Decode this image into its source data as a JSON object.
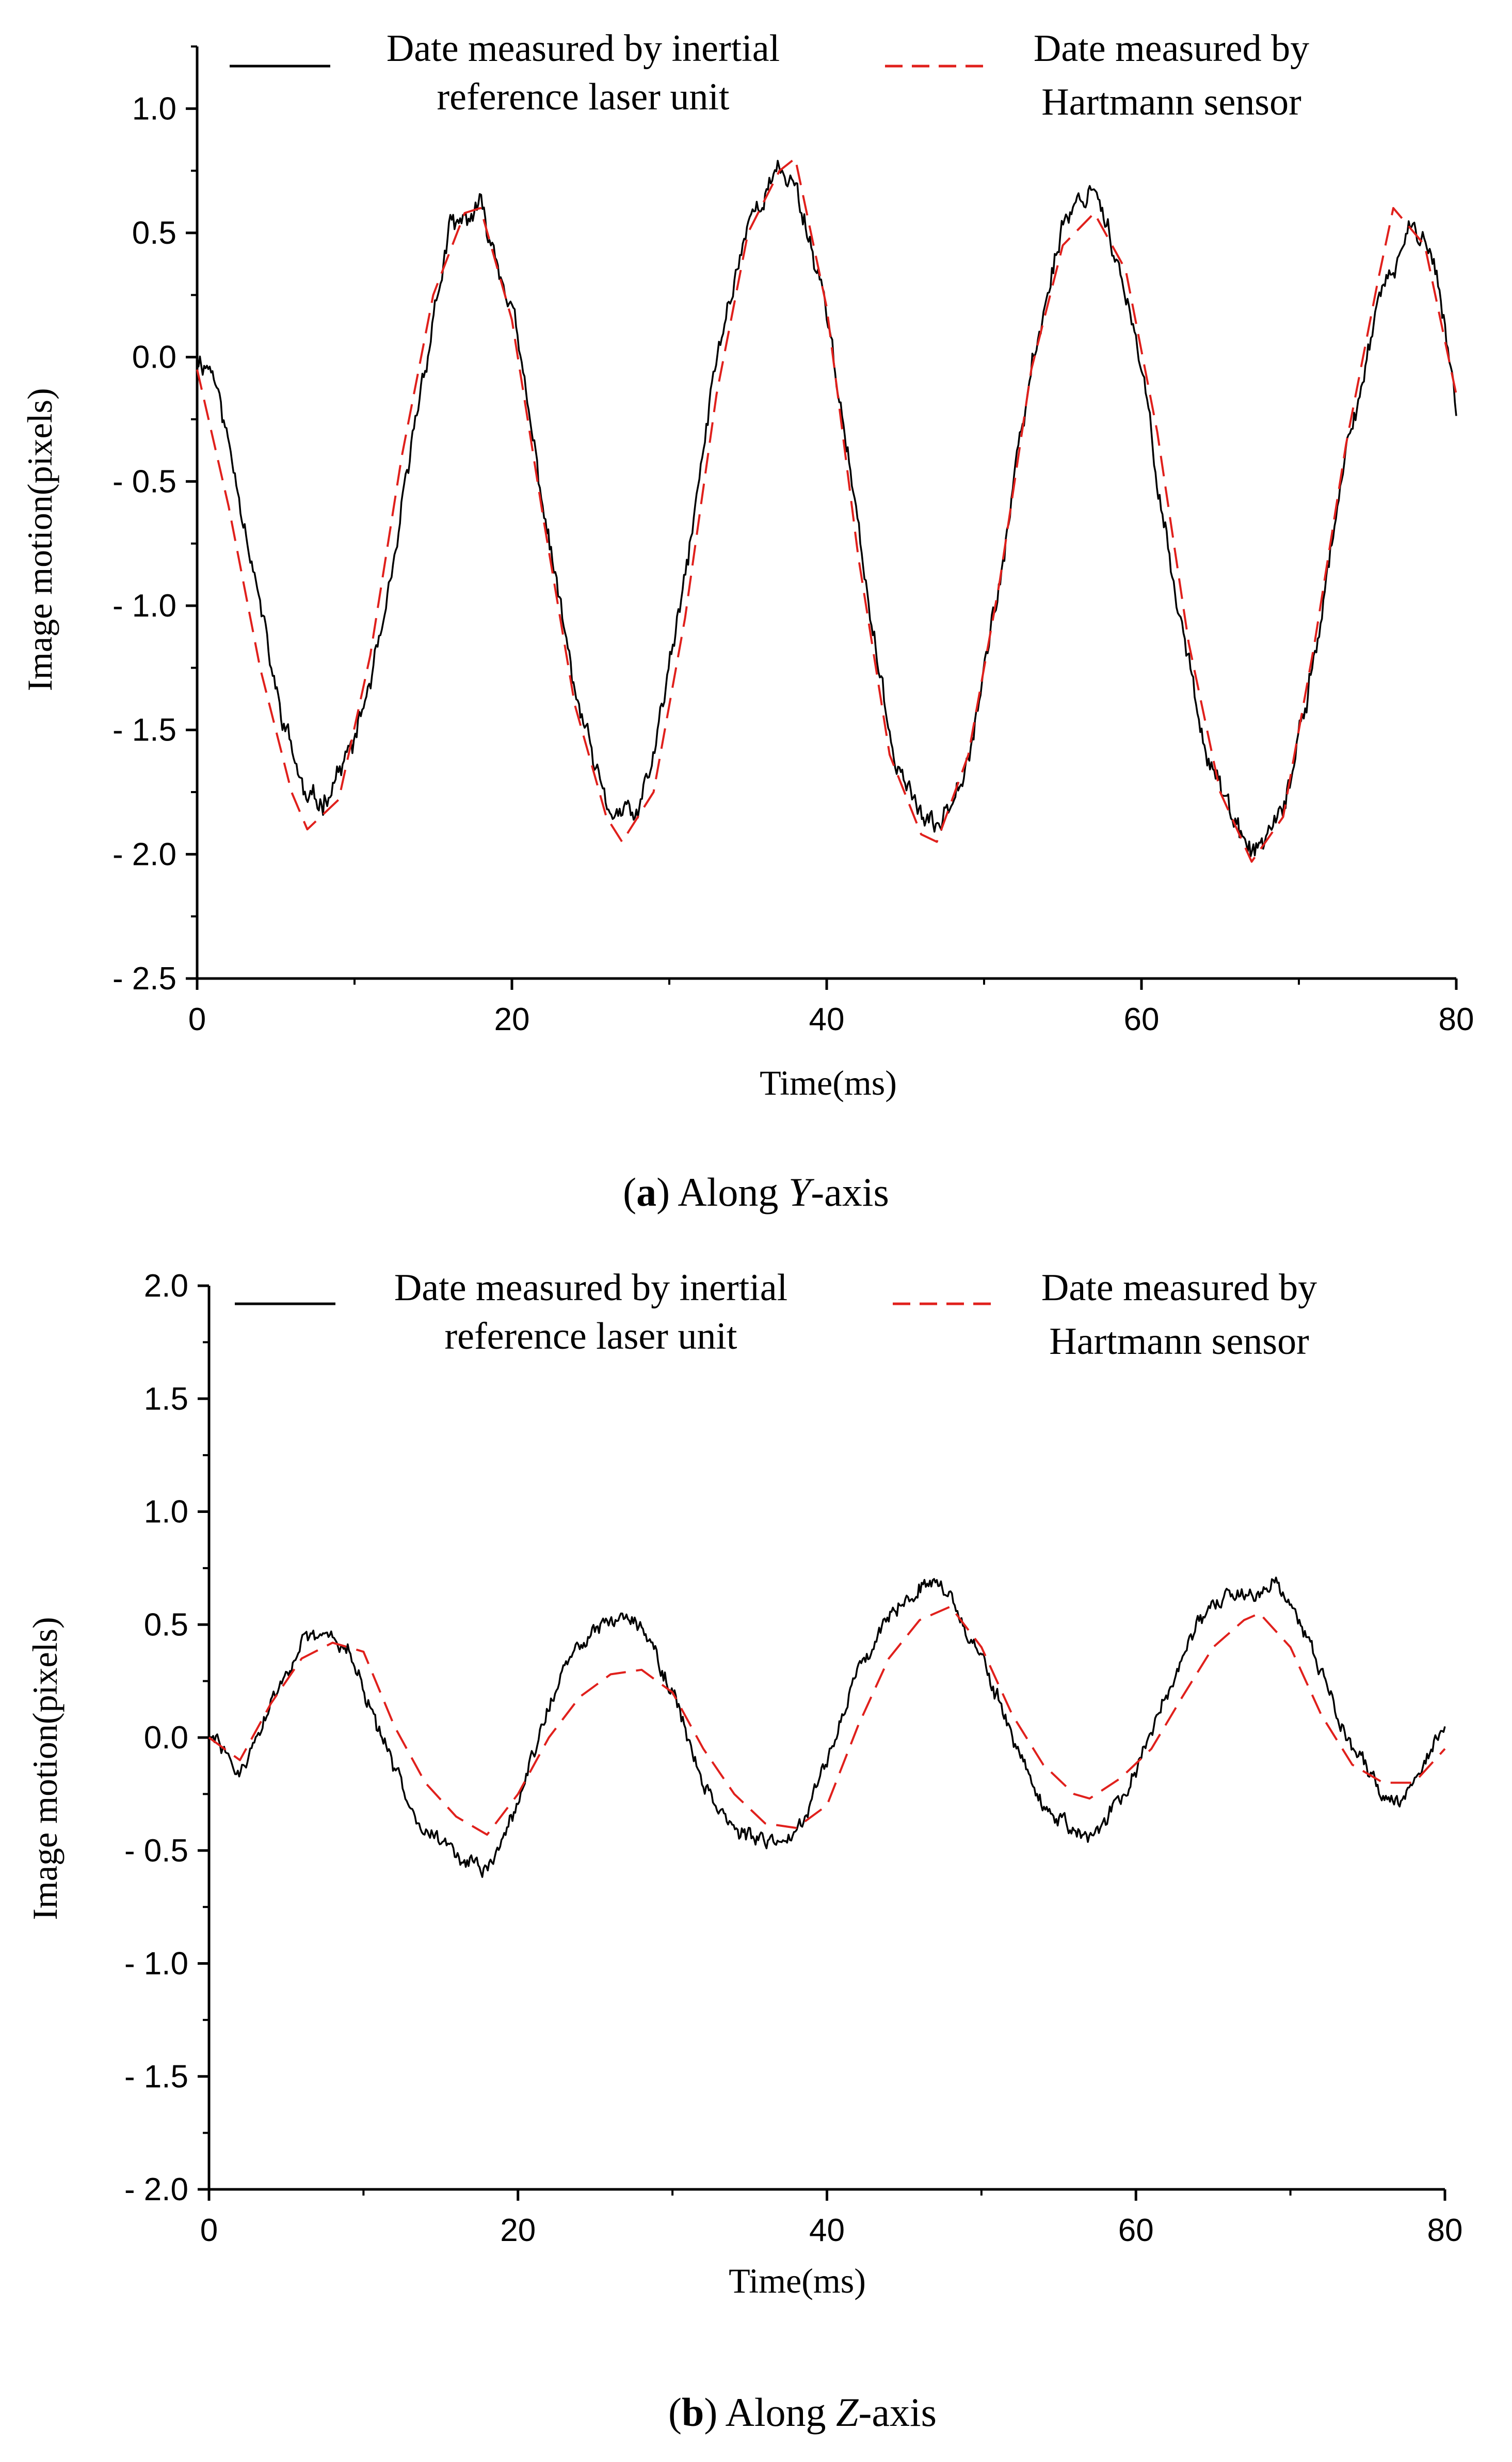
{
  "chart_data": [
    {
      "type": "line",
      "id": "a",
      "caption": {
        "letter": "a",
        "prefix": "Along ",
        "axis": "Y",
        "suffix": "-axis"
      },
      "xlabel": "Time(ms)",
      "ylabel": "Image motion(pixels)",
      "xlim": [
        0,
        80
      ],
      "ylim": [
        -2.5,
        1.25
      ],
      "xticks": [
        0,
        20,
        40,
        60,
        80
      ],
      "xtick_labels": [
        "0",
        "20",
        "40",
        "60",
        "80"
      ],
      "yticks": [
        -2.5,
        -2.0,
        -1.5,
        -1.0,
        -0.5,
        0.0,
        0.5,
        1.0
      ],
      "ytick_labels": [
        "- 2.5",
        "- 2.0",
        "- 1.5",
        "- 1.0",
        "- 0.5",
        "0.0",
        "0.5",
        "1.0"
      ],
      "legend": [
        {
          "lines": [
            "Date measured by inertial",
            "reference laser unit"
          ],
          "color": "#000000",
          "dash": false
        },
        {
          "lines": [
            "Date measured by",
            "Hartmann sensor"
          ],
          "color": "#e0201c",
          "dash": true
        }
      ],
      "series": [
        {
          "name": "Date measured by inertial reference laser unit",
          "color": "#000000",
          "noise": 0.045,
          "seed": 11,
          "x": [
            0,
            1,
            3,
            5,
            7,
            8,
            10,
            12,
            14,
            16,
            18,
            20,
            22,
            24,
            26,
            28,
            29,
            31,
            33,
            35,
            37,
            38,
            40,
            42,
            44,
            46,
            47,
            49,
            51,
            53,
            55,
            57,
            58,
            60,
            62,
            64,
            66,
            67,
            69,
            71,
            73,
            75,
            77,
            78,
            79,
            80
          ],
          "values": [
            0.0,
            -0.05,
            -0.65,
            -1.35,
            -1.8,
            -1.78,
            -1.55,
            -1.05,
            -0.2,
            0.5,
            0.6,
            0.2,
            -0.6,
            -1.35,
            -1.82,
            -1.85,
            -1.6,
            -0.9,
            0.0,
            0.55,
            0.75,
            0.7,
            0.2,
            -0.7,
            -1.55,
            -1.85,
            -1.9,
            -1.6,
            -0.9,
            -0.05,
            0.55,
            0.7,
            0.5,
            -0.05,
            -0.9,
            -1.55,
            -1.9,
            -2.0,
            -1.85,
            -1.2,
            -0.4,
            0.2,
            0.5,
            0.52,
            0.25,
            -0.2
          ]
        },
        {
          "name": "Date measured by Hartmann sensor",
          "color": "#e0201c",
          "dashed": true,
          "x": [
            0,
            2,
            4,
            6,
            7,
            9,
            11,
            13,
            15,
            17,
            18,
            20,
            22,
            24,
            26,
            27,
            29,
            31,
            33,
            35,
            37,
            38,
            40,
            42,
            44,
            46,
            47,
            49,
            51,
            53,
            55,
            57,
            59,
            61,
            63,
            65,
            67,
            69,
            71,
            73,
            75,
            76,
            78,
            80
          ],
          "values": [
            -0.05,
            -0.6,
            -1.25,
            -1.75,
            -1.9,
            -1.78,
            -1.2,
            -0.4,
            0.25,
            0.58,
            0.6,
            0.15,
            -0.65,
            -1.4,
            -1.85,
            -1.95,
            -1.75,
            -1.05,
            -0.15,
            0.5,
            0.75,
            0.8,
            0.2,
            -0.8,
            -1.6,
            -1.92,
            -1.95,
            -1.6,
            -0.9,
            -0.05,
            0.45,
            0.58,
            0.35,
            -0.3,
            -1.15,
            -1.75,
            -2.03,
            -1.85,
            -1.15,
            -0.35,
            0.3,
            0.6,
            0.45,
            -0.15
          ]
        }
      ]
    },
    {
      "type": "line",
      "id": "b",
      "caption": {
        "letter": "b",
        "prefix": "Along ",
        "axis": "Z",
        "suffix": "-axis"
      },
      "xlabel": "Time(ms)",
      "ylabel": "Image motion(pixels)",
      "xlim": [
        0,
        80
      ],
      "ylim": [
        -2.0,
        2.0
      ],
      "xticks": [
        0,
        20,
        40,
        60,
        80
      ],
      "xtick_labels": [
        "0",
        "20",
        "40",
        "60",
        "80"
      ],
      "yticks": [
        -2.0,
        -1.5,
        -1.0,
        -0.5,
        0.0,
        0.5,
        1.0,
        1.5,
        2.0
      ],
      "ytick_labels": [
        "- 2.0",
        "- 1.5",
        "- 1.0",
        "- 0.5",
        "0.0",
        "0.5",
        "1.0",
        "1.5",
        "2.0"
      ],
      "legend": [
        {
          "lines": [
            "Date measured by inertial",
            "reference laser unit"
          ],
          "color": "#000000",
          "dash": false
        },
        {
          "lines": [
            "Date measured by",
            "Hartmann sensor"
          ],
          "color": "#e0201c",
          "dash": true
        }
      ],
      "series": [
        {
          "name": "Date measured by inertial reference laser unit",
          "color": "#000000",
          "noise": 0.035,
          "seed": 29,
          "x": [
            0,
            1,
            2,
            4,
            6,
            8,
            9,
            10,
            12,
            14,
            16,
            18,
            20,
            22,
            24,
            26,
            27,
            28,
            30,
            32,
            34,
            36,
            38,
            40,
            42,
            44,
            46,
            47,
            48,
            50,
            52,
            54,
            56,
            57,
            58,
            60,
            62,
            64,
            66,
            68,
            69,
            70,
            72,
            74,
            76,
            77,
            78,
            80
          ],
          "values": [
            0.0,
            -0.05,
            -0.18,
            0.15,
            0.42,
            0.45,
            0.4,
            0.2,
            -0.15,
            -0.4,
            -0.52,
            -0.6,
            -0.3,
            0.15,
            0.42,
            0.52,
            0.55,
            0.5,
            0.2,
            -0.2,
            -0.4,
            -0.48,
            -0.42,
            -0.1,
            0.3,
            0.55,
            0.68,
            0.7,
            0.62,
            0.35,
            0.0,
            -0.3,
            -0.42,
            -0.45,
            -0.38,
            -0.15,
            0.2,
            0.5,
            0.62,
            0.65,
            0.7,
            0.6,
            0.3,
            -0.05,
            -0.25,
            -0.28,
            -0.2,
            0.05
          ]
        },
        {
          "name": "Date measured by Hartmann sensor",
          "color": "#e0201c",
          "dashed": true,
          "x": [
            0,
            2,
            4,
            6,
            8,
            10,
            12,
            14,
            16,
            18,
            20,
            22,
            24,
            26,
            28,
            30,
            32,
            34,
            36,
            38,
            40,
            42,
            44,
            46,
            48,
            50,
            52,
            54,
            56,
            57,
            59,
            61,
            63,
            65,
            67,
            68,
            70,
            72,
            74,
            76,
            78,
            80
          ],
          "values": [
            0.0,
            -0.1,
            0.15,
            0.35,
            0.42,
            0.38,
            0.05,
            -0.2,
            -0.35,
            -0.43,
            -0.25,
            0.0,
            0.18,
            0.28,
            0.3,
            0.2,
            -0.05,
            -0.25,
            -0.38,
            -0.4,
            -0.3,
            0.05,
            0.35,
            0.52,
            0.58,
            0.4,
            0.1,
            -0.12,
            -0.25,
            -0.27,
            -0.18,
            -0.05,
            0.18,
            0.4,
            0.52,
            0.55,
            0.4,
            0.1,
            -0.12,
            -0.2,
            -0.2,
            -0.05
          ]
        }
      ]
    }
  ]
}
